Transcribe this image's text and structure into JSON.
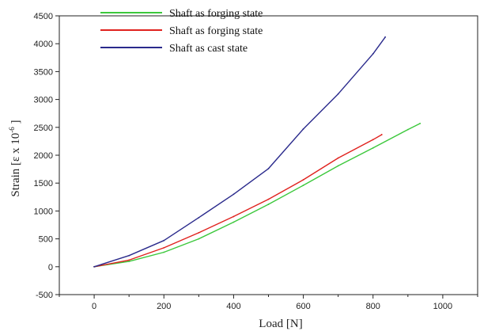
{
  "chart_data": {
    "type": "line",
    "xlabel": "Load  [N]",
    "ylabel": "Strain  [ε x 10",
    "ylabel_exp": "-6",
    "ylabel_close": " ]",
    "xlim": [
      -100,
      1100
    ],
    "ylim": [
      -500,
      4500
    ],
    "x_ticks": [
      0,
      200,
      400,
      600,
      800,
      1000
    ],
    "y_ticks": [
      -500,
      0,
      500,
      1000,
      1500,
      2000,
      2500,
      3000,
      3500,
      4000,
      4500
    ],
    "grid": false,
    "legend_position": "top-left",
    "series": [
      {
        "name": "Shaft as forging state",
        "color": "#3cc83c",
        "x": [
          0,
          100,
          200,
          300,
          400,
          500,
          600,
          700,
          800,
          900,
          935
        ],
        "y": [
          0,
          95,
          260,
          500,
          800,
          1120,
          1460,
          1810,
          2130,
          2460,
          2570
        ]
      },
      {
        "name": "Shaft as forging state",
        "color": "#e0221e",
        "x": [
          0,
          100,
          200,
          300,
          400,
          500,
          600,
          700,
          800,
          825
        ],
        "y": [
          0,
          120,
          340,
          610,
          900,
          1210,
          1560,
          1950,
          2280,
          2370
        ]
      },
      {
        "name": "Shaft as cast state",
        "color": "#2a2a8c",
        "x": [
          0,
          100,
          200,
          300,
          400,
          500,
          600,
          700,
          800,
          835
        ],
        "y": [
          0,
          200,
          470,
          880,
          1300,
          1760,
          2470,
          3100,
          3820,
          4120
        ]
      }
    ]
  }
}
